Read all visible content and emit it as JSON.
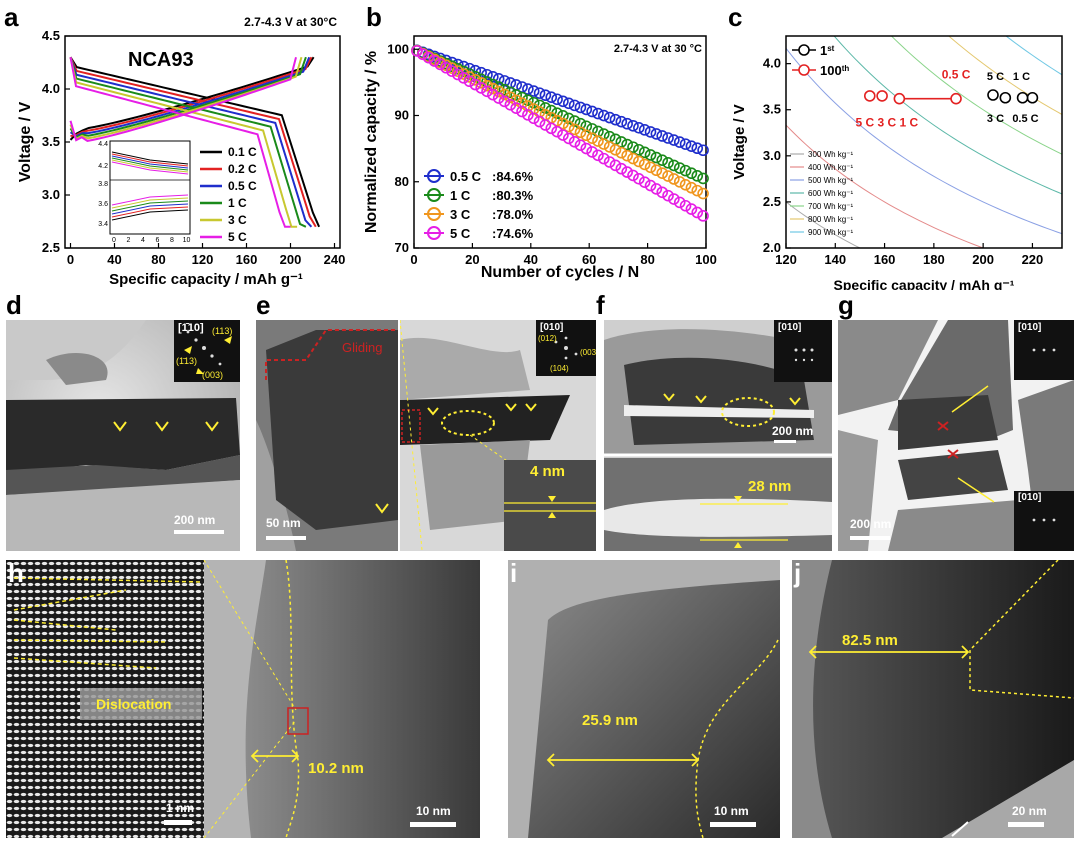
{
  "panel_letters": [
    "a",
    "b",
    "c",
    "d",
    "e",
    "f",
    "g",
    "h",
    "i",
    "j"
  ],
  "chart_data": [
    {
      "panel": "a",
      "type": "line",
      "title": "NCA93",
      "condition": "2.7-4.3 V at 30°C",
      "xlabel": "Specific capacity / mAh g⁻¹",
      "ylabel": "Voltage / V",
      "xlim": [
        -5,
        245
      ],
      "ylim": [
        2.5,
        4.5
      ],
      "xticks": [
        "0",
        "40",
        "80",
        "120",
        "160",
        "200",
        "240"
      ],
      "yticks": [
        "2.5",
        "3.0",
        "3.5",
        "4.0",
        "4.5"
      ],
      "legend_position": "center-right",
      "series": [
        {
          "name": "0.1 C",
          "color": "#000000",
          "charge_end": 221,
          "discharge_end": 226
        },
        {
          "name": "0.2 C",
          "color": "#e32222",
          "charge_end": 219,
          "discharge_end": 223
        },
        {
          "name": "0.5 C",
          "color": "#1f2ecc",
          "charge_end": 217,
          "discharge_end": 219
        },
        {
          "name": "1 C",
          "color": "#1a8a1a",
          "charge_end": 214,
          "discharge_end": 214
        },
        {
          "name": "3 C",
          "color": "#c8c830",
          "charge_end": 210,
          "discharge_end": 206
        },
        {
          "name": "5 C",
          "color": "#e61ee6",
          "charge_end": 205,
          "discharge_end": 200
        }
      ],
      "inset": {
        "top_yticks": [
          "4.4",
          "4.2"
        ],
        "bottom_yticks": [
          "3.8",
          "3.6",
          "3.4"
        ],
        "xticks": [
          "0",
          "2",
          "4",
          "6",
          "8",
          "10"
        ]
      }
    },
    {
      "panel": "b",
      "type": "scatter",
      "condition": "2.7-4.3 V at 30 °C",
      "xlabel": "Number of cycles / N",
      "ylabel": "Normalized capacity / %",
      "xlim": [
        0,
        100
      ],
      "ylim": [
        70,
        102
      ],
      "xticks": [
        "0",
        "20",
        "40",
        "60",
        "80",
        "100"
      ],
      "yticks": [
        "70",
        "80",
        "90",
        "100"
      ],
      "legend_position": "bottom-left",
      "series": [
        {
          "name": "0.5 C",
          "retention_label": ":84.6%",
          "color": "#1f2ecc",
          "end": 84.6
        },
        {
          "name": "1 C",
          "retention_label": ":80.3%",
          "color": "#1a8a1a",
          "end": 80.3
        },
        {
          "name": "3 C",
          "retention_label": ":78.0%",
          "color": "#f0961e",
          "end": 78.0
        },
        {
          "name": "5 C",
          "retention_label": ":74.6%",
          "color": "#e61ee6",
          "end": 74.6
        }
      ]
    },
    {
      "panel": "c",
      "type": "scatter",
      "xlabel": "Specific capacity / mAh g⁻¹",
      "ylabel": "Voltage / V",
      "xlim": [
        120,
        232
      ],
      "ylim": [
        2.0,
        4.3
      ],
      "xticks": [
        "120",
        "140",
        "160",
        "180",
        "200",
        "220"
      ],
      "yticks": [
        "2.0",
        "2.5",
        "3.0",
        "3.5",
        "4.0"
      ],
      "legend": [
        {
          "label": "1",
          "sup": "st",
          "color": "#000000"
        },
        {
          "label": "100",
          "sup": "th",
          "color": "#e32222"
        }
      ],
      "first_cycle_points": [
        {
          "rate": "0.5 C",
          "x": 220,
          "y": 3.63
        },
        {
          "rate": "1 C",
          "x": 216,
          "y": 3.63
        },
        {
          "rate": "3 C",
          "x": 209,
          "y": 3.63
        },
        {
          "rate": "5 C",
          "x": 204,
          "y": 3.66
        }
      ],
      "hundredth_cycle_points": [
        {
          "rate": "0.5 C",
          "x": 189,
          "y": 3.62
        },
        {
          "rate": "1 C",
          "x": 166,
          "y": 3.62
        },
        {
          "rate": "3 C",
          "x": 159,
          "y": 3.65
        },
        {
          "rate": "5 C",
          "x": 154,
          "y": 3.65
        }
      ],
      "rate_labels": {
        "red_top": "0.5 C",
        "red_bottom": [
          "5 C",
          "3 C",
          "1 C"
        ],
        "black_top": [
          "5 C",
          "1 C"
        ],
        "black_bottom": [
          "3 C",
          "0.5 C"
        ]
      },
      "energy_lines": [
        {
          "label": "300 Wh kg⁻¹",
          "wh": 300,
          "color": "#aaaaaa"
        },
        {
          "label": "400 Wh kg⁻¹",
          "wh": 400,
          "color": "#e48a8a"
        },
        {
          "label": "500 Wh kg⁻¹",
          "wh": 500,
          "color": "#8aa0e4"
        },
        {
          "label": "600 Wh kg⁻¹",
          "wh": 600,
          "color": "#5cb8a8"
        },
        {
          "label": "700 Wh kg⁻¹",
          "wh": 700,
          "color": "#8ad48a"
        },
        {
          "label": "800 Wh kg⁻¹",
          "wh": 800,
          "color": "#e4c870"
        },
        {
          "label": "900 Wh kg⁻¹",
          "wh": 900,
          "color": "#70c8e4"
        }
      ]
    }
  ],
  "tem_panels": {
    "d": {
      "scale": "200 nm",
      "diffraction": "[1̄10]",
      "spots": [
        "(113)",
        "(1̄13)",
        "(003)"
      ]
    },
    "e": {
      "scale": "50 nm",
      "gliding": "Gliding",
      "diffraction": "[010]",
      "spots": [
        "(012)",
        "(003)",
        "(104)"
      ],
      "gap": "4 nm"
    },
    "f": {
      "scale": "200 nm",
      "diffraction": "[010]",
      "gap": "28 nm"
    },
    "g": {
      "scale": "200 nm",
      "zone_top": "[010]",
      "zone_bottom": "[010]"
    },
    "h": {
      "left_scale": "1 nm",
      "right_scale": "10 nm",
      "dislocation": "Dislocation",
      "width": "10.2 nm"
    },
    "i": {
      "scale": "10 nm",
      "width": "25.9 nm"
    },
    "j": {
      "scale": "20 nm",
      "width": "82.5 nm"
    }
  }
}
